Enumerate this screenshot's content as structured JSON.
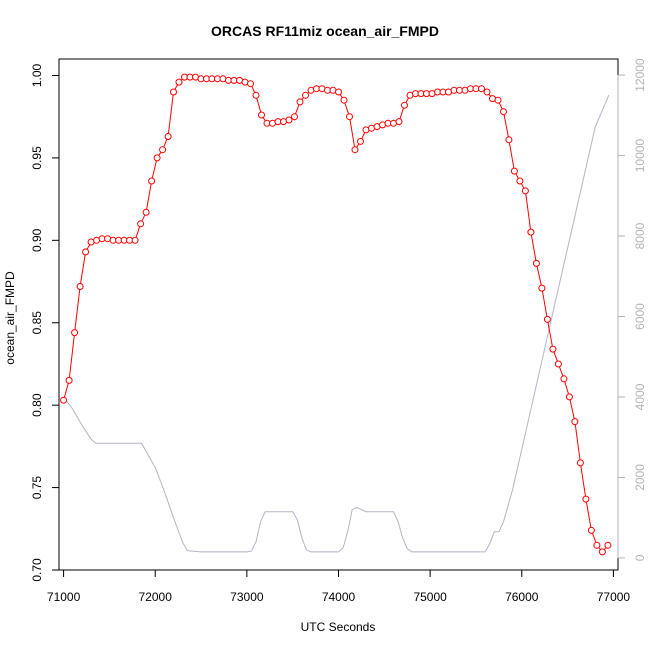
{
  "chart_data": {
    "type": "line",
    "title": "ORCAS RF11miz ocean_air_FMPD",
    "xlabel": "UTC Seconds",
    "ylabel": "ocean_air_FMPD",
    "xlim": [
      70950,
      77050
    ],
    "ylim": [
      0.7,
      1.01
    ],
    "y2lim": [
      -300,
      12400
    ],
    "x_ticks": [
      71000,
      72000,
      73000,
      74000,
      75000,
      76000,
      77000
    ],
    "x_tick_labels": [
      "71000",
      "72000",
      "73000",
      "74000",
      "75000",
      "76000",
      "77000"
    ],
    "y_ticks": [
      0.7,
      0.75,
      0.8,
      0.85,
      0.9,
      0.95,
      1.0
    ],
    "y_tick_labels": [
      "0.70",
      "0.75",
      "0.80",
      "0.85",
      "0.90",
      "0.95",
      "1.00"
    ],
    "y2_ticks": [
      0,
      2000,
      4000,
      6000,
      8000,
      10000,
      12000
    ],
    "y2_tick_labels": [
      "0",
      "2000",
      "4000",
      "6000",
      "8000",
      "10000",
      "12000"
    ],
    "grid": false,
    "colors": {
      "primary": "#ff0000",
      "secondary": "#b4b4c8",
      "right_axis": "#b4b4b4"
    },
    "series": [
      {
        "axis": "left",
        "style": "line-points",
        "x": [
          71000,
          71060,
          71120,
          71180,
          71240,
          71300,
          71360,
          71420,
          71480,
          71540,
          71600,
          71660,
          71720,
          71780,
          71840,
          71900,
          71960,
          72020,
          72080,
          72140,
          72200,
          72260,
          72320,
          72380,
          72440,
          72500,
          72560,
          72620,
          72680,
          72740,
          72800,
          72860,
          72920,
          72980,
          73040,
          73100,
          73160,
          73220,
          73280,
          73340,
          73400,
          73460,
          73520,
          73580,
          73640,
          73700,
          73760,
          73820,
          73880,
          73940,
          74000,
          74060,
          74120,
          74180,
          74240,
          74300,
          74360,
          74420,
          74480,
          74540,
          74600,
          74660,
          74720,
          74780,
          74840,
          74900,
          74960,
          75020,
          75080,
          75140,
          75200,
          75260,
          75320,
          75380,
          75440,
          75500,
          75560,
          75620,
          75680,
          75740,
          75800,
          75860,
          75920,
          75980,
          76040,
          76100,
          76160,
          76220,
          76280,
          76340,
          76400,
          76460,
          76520,
          76580,
          76640,
          76700,
          76760,
          76820,
          76880,
          76940
        ],
        "y": [
          0.803,
          0.815,
          0.844,
          0.872,
          0.893,
          0.899,
          0.9,
          0.901,
          0.901,
          0.9,
          0.9,
          0.9,
          0.9,
          0.9,
          0.91,
          0.917,
          0.936,
          0.95,
          0.955,
          0.963,
          0.99,
          0.996,
          0.999,
          0.999,
          0.999,
          0.998,
          0.998,
          0.998,
          0.998,
          0.998,
          0.997,
          0.997,
          0.997,
          0.996,
          0.995,
          0.988,
          0.976,
          0.971,
          0.971,
          0.972,
          0.972,
          0.973,
          0.975,
          0.984,
          0.988,
          0.991,
          0.992,
          0.992,
          0.991,
          0.991,
          0.99,
          0.985,
          0.975,
          0.955,
          0.96,
          0.967,
          0.968,
          0.969,
          0.97,
          0.971,
          0.971,
          0.972,
          0.982,
          0.988,
          0.989,
          0.989,
          0.989,
          0.989,
          0.99,
          0.99,
          0.99,
          0.991,
          0.991,
          0.991,
          0.992,
          0.992,
          0.992,
          0.99,
          0.986,
          0.985,
          0.978,
          0.961,
          0.942,
          0.936,
          0.93,
          0.905,
          0.886,
          0.871,
          0.852,
          0.834,
          0.825,
          0.816,
          0.805,
          0.79,
          0.765,
          0.743,
          0.724,
          0.715,
          0.711,
          0.715
        ]
      },
      {
        "axis": "right",
        "style": "line",
        "x": [
          71000,
          71100,
          71200,
          71300,
          71350,
          71500,
          71700,
          71800,
          71850,
          72000,
          72100,
          72200,
          72300,
          72350,
          72500,
          72800,
          73000,
          73050,
          73100,
          73150,
          73200,
          73300,
          73400,
          73480,
          73500,
          73550,
          73600,
          73650,
          73700,
          73800,
          73900,
          74000,
          74050,
          74100,
          74150,
          74200,
          74300,
          74500,
          74550,
          74600,
          74650,
          74700,
          74750,
          74800,
          74900,
          75000,
          75200,
          75400,
          75500,
          75600,
          75650,
          75700,
          75750,
          75800,
          75900,
          76000,
          76200,
          76400,
          76600,
          76800,
          76950
        ],
        "y": [
          4000,
          3700,
          3300,
          2950,
          2850,
          2850,
          2850,
          2850,
          2850,
          2250,
          1650,
          1000,
          380,
          180,
          150,
          150,
          150,
          170,
          400,
          900,
          1150,
          1150,
          1150,
          1150,
          1150,
          950,
          500,
          200,
          150,
          150,
          150,
          150,
          250,
          650,
          1200,
          1250,
          1150,
          1150,
          1150,
          1150,
          900,
          500,
          230,
          150,
          150,
          150,
          150,
          150,
          150,
          150,
          350,
          650,
          650,
          900,
          1700,
          2700,
          4700,
          6700,
          8700,
          10700,
          11500
        ]
      }
    ]
  }
}
